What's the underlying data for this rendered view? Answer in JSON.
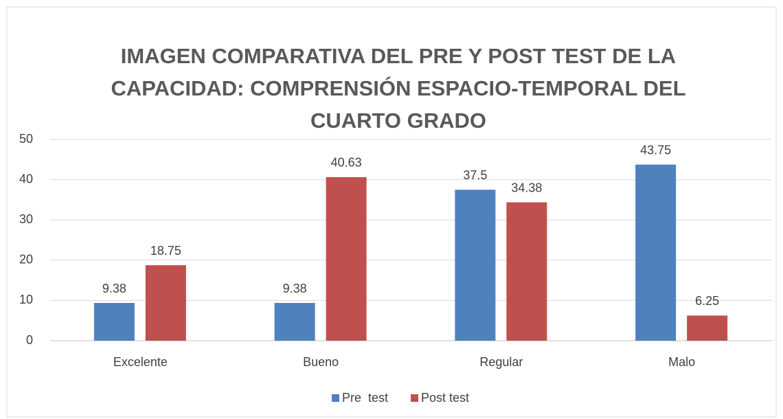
{
  "chart_data": {
    "type": "bar",
    "title": "IMAGEN COMPARATIVA DEL PRE Y POST TEST DE LA CAPACIDAD: COMPRENSIÓN ESPACIO-TEMPORAL DEL CUARTO GRADO",
    "categories": [
      "Excelente",
      "Bueno",
      "Regular",
      "Malo"
    ],
    "series": [
      {
        "name": "Pre  test",
        "color": "#4f81bd",
        "values": [
          9.38,
          9.38,
          37.5,
          43.75
        ]
      },
      {
        "name": "Post test",
        "color": "#c0504d",
        "values": [
          18.75,
          40.63,
          34.38,
          6.25
        ]
      }
    ],
    "ylim": [
      0,
      50
    ],
    "yticks": [
      0,
      10,
      20,
      30,
      40,
      50
    ],
    "grid": true,
    "legend": "bottom"
  }
}
